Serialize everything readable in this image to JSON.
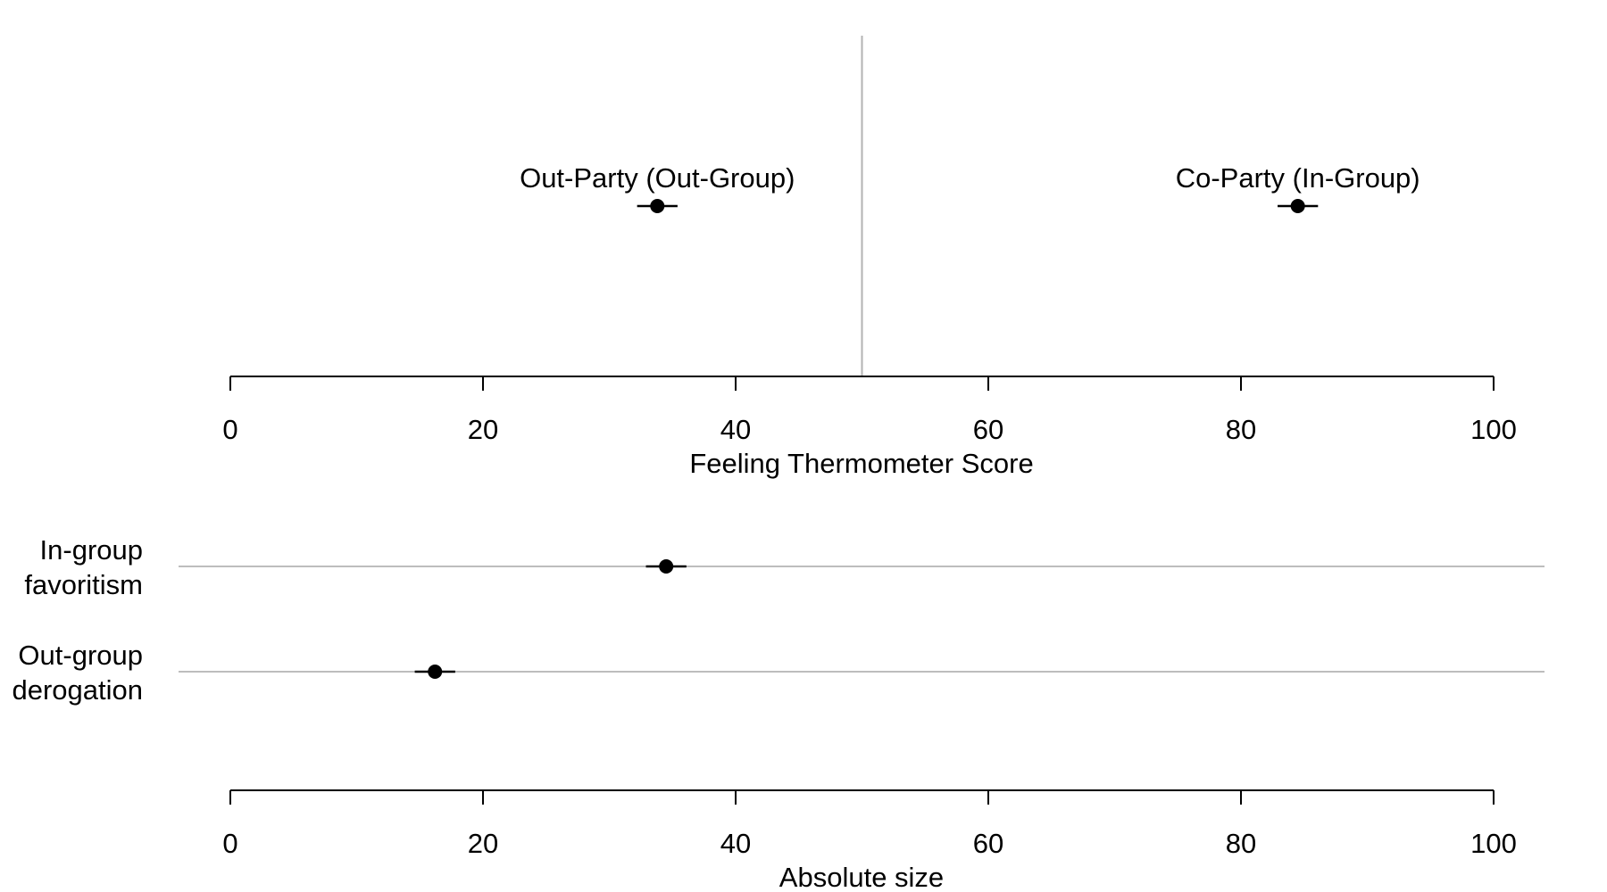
{
  "chart_data": [
    {
      "type": "scatter",
      "xlabel": "Feeling Thermometer Score",
      "xlim": [
        0,
        100
      ],
      "x_ticks": [
        0,
        20,
        40,
        60,
        80,
        100
      ],
      "reference_line_x": 50,
      "points": [
        {
          "label": "Out-Party (Out-Group)",
          "value": 33.8,
          "ci": [
            32.2,
            35.4
          ]
        },
        {
          "label": "Co-Party (In-Group)",
          "value": 84.5,
          "ci": [
            82.9,
            86.1
          ]
        }
      ]
    },
    {
      "type": "scatter",
      "xlabel": "Absolute size",
      "xlim": [
        0,
        100
      ],
      "x_ticks": [
        0,
        20,
        40,
        60,
        80,
        100
      ],
      "rows": [
        {
          "label_lines": [
            "In-group",
            "favoritism"
          ],
          "value": 34.5,
          "ci": [
            32.9,
            36.1
          ]
        },
        {
          "label_lines": [
            "Out-group",
            "derogation"
          ],
          "value": 16.2,
          "ci": [
            14.6,
            17.8
          ]
        }
      ]
    }
  ]
}
